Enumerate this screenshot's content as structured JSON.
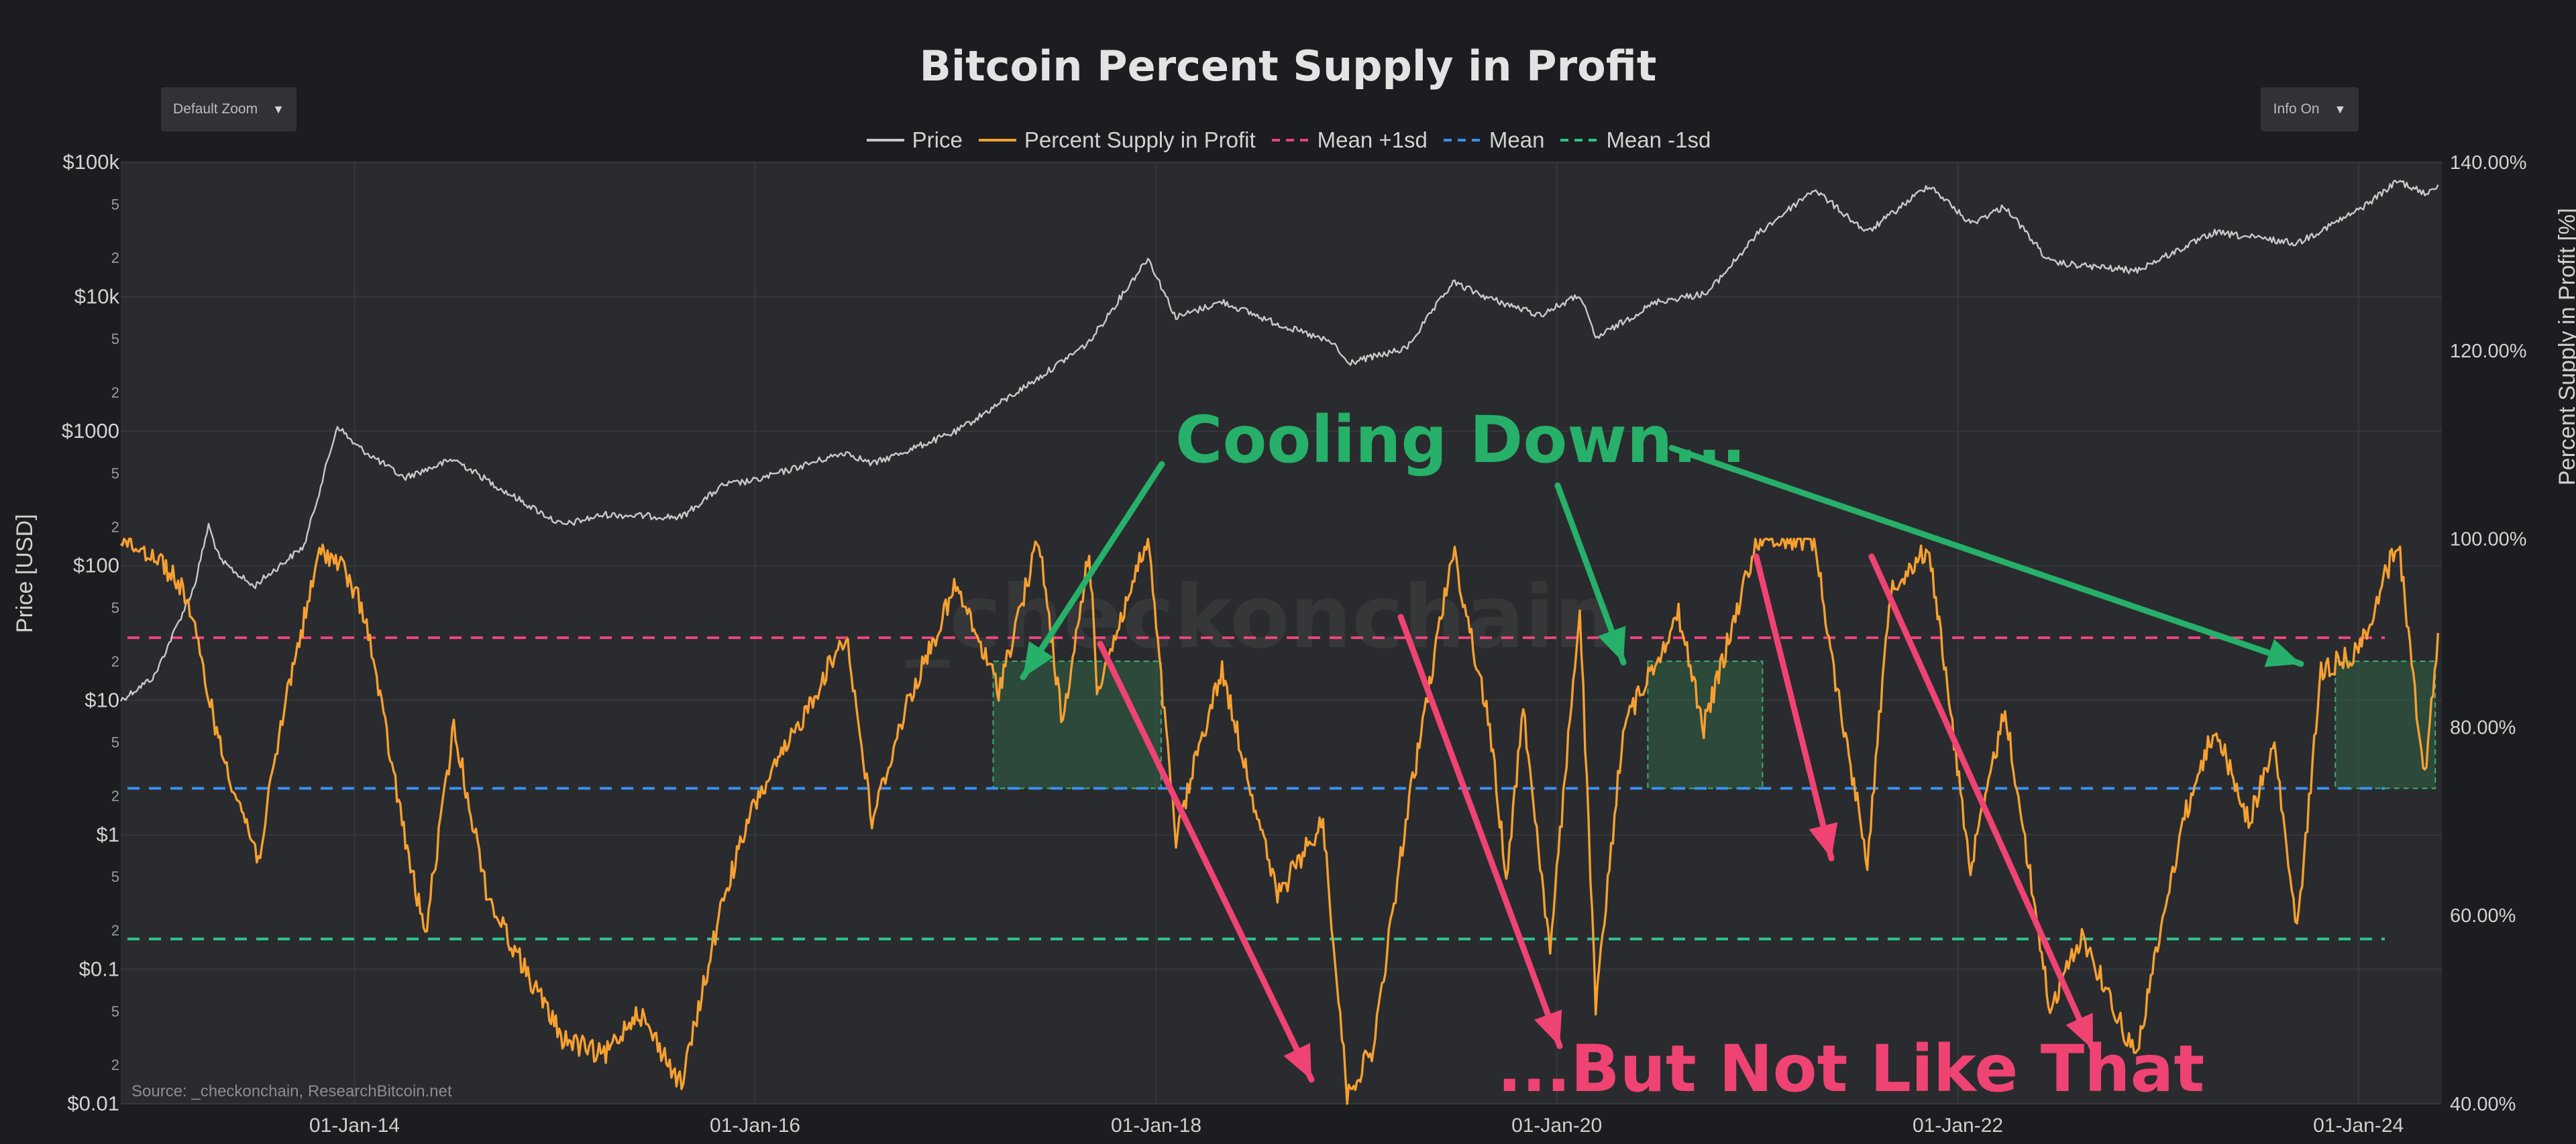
{
  "chart_title": "Bitcoin  Percent Supply in Profit",
  "zoom_dropdown": {
    "value": "Default Zoom",
    "icon": "caret-down-icon"
  },
  "info_dropdown": {
    "value": "Info On",
    "icon": "caret-down-icon"
  },
  "legend": [
    {
      "label": "Price",
      "color": "#c9c9c9",
      "style": "solid"
    },
    {
      "label": "Percent Supply in Profit",
      "color": "#f7a030",
      "style": "solid"
    },
    {
      "label": "Mean +1sd",
      "color": "#e8457a",
      "style": "dashed"
    },
    {
      "label": "Mean",
      "color": "#3b8ff0",
      "style": "dashed"
    },
    {
      "label": "Mean -1sd",
      "color": "#2fc48c",
      "style": "dashed"
    }
  ],
  "source": "Source: _checkonchain, ResearchBitcoin.net",
  "watermark": "_checkonchain",
  "annotations": {
    "cooling": "Cooling Down...",
    "not_like": "...But Not Like That"
  },
  "chart_data": {
    "type": "line",
    "x_range": [
      "2012-11-01",
      "2024-06-01"
    ],
    "x_ticks": [
      {
        "date": "2014-01-01",
        "label": "01-Jan-14"
      },
      {
        "date": "2016-01-01",
        "label": "01-Jan-16"
      },
      {
        "date": "2018-01-01",
        "label": "01-Jan-18"
      },
      {
        "date": "2020-01-01",
        "label": "01-Jan-20"
      },
      {
        "date": "2022-01-01",
        "label": "01-Jan-22"
      },
      {
        "date": "2024-01-01",
        "label": "01-Jan-24"
      }
    ],
    "y_left": {
      "label": "Price [USD]",
      "scale": "log",
      "range": [
        0.01,
        100000
      ],
      "ticks": [
        {
          "v": 100000,
          "t": "$100k",
          "major": true
        },
        {
          "v": 50000,
          "t": "5"
        },
        {
          "v": 20000,
          "t": "2"
        },
        {
          "v": 10000,
          "t": "$10k",
          "major": true
        },
        {
          "v": 5000,
          "t": "5"
        },
        {
          "v": 2000,
          "t": "2"
        },
        {
          "v": 1000,
          "t": "$1000",
          "major": true
        },
        {
          "v": 500,
          "t": "5"
        },
        {
          "v": 200,
          "t": "2"
        },
        {
          "v": 100,
          "t": "$100",
          "major": true
        },
        {
          "v": 50,
          "t": "5"
        },
        {
          "v": 20,
          "t": "2"
        },
        {
          "v": 10,
          "t": "$10",
          "major": true
        },
        {
          "v": 5,
          "t": "5"
        },
        {
          "v": 2,
          "t": "2"
        },
        {
          "v": 1,
          "t": "$1",
          "major": true
        },
        {
          "v": 0.5,
          "t": "5"
        },
        {
          "v": 0.2,
          "t": "2"
        },
        {
          "v": 0.1,
          "t": "$0.1",
          "major": true
        },
        {
          "v": 0.05,
          "t": "5"
        },
        {
          "v": 0.02,
          "t": "2"
        },
        {
          "v": 0.01,
          "t": "$0.01",
          "major": true
        }
      ]
    },
    "y_right": {
      "label": "Percent Supply in Profit [%]",
      "range": [
        40,
        140
      ],
      "ticks": [
        {
          "v": 140,
          "t": "140.00%"
        },
        {
          "v": 120,
          "t": "120.00%"
        },
        {
          "v": 100,
          "t": "100.00%"
        },
        {
          "v": 80,
          "t": "80.00%"
        },
        {
          "v": 60,
          "t": "60.00%"
        },
        {
          "v": 40,
          "t": "40.00%"
        }
      ]
    },
    "bands": {
      "mean_plus_1sd": 89.5,
      "mean": 73.5,
      "mean_minus_1sd": 57.5
    },
    "series": [
      {
        "name": "Price",
        "axis": "left",
        "color": "#c9c9c9",
        "points": [
          [
            "2012-11-01",
            10
          ],
          [
            "2013-01-01",
            15
          ],
          [
            "2013-03-15",
            70
          ],
          [
            "2013-04-10",
            200
          ],
          [
            "2013-05-01",
            110
          ],
          [
            "2013-07-01",
            70
          ],
          [
            "2013-10-01",
            140
          ],
          [
            "2013-12-01",
            1100
          ],
          [
            "2014-01-01",
            800
          ],
          [
            "2014-04-01",
            450
          ],
          [
            "2014-07-01",
            620
          ],
          [
            "2014-10-01",
            360
          ],
          [
            "2015-01-15",
            200
          ],
          [
            "2015-04-01",
            240
          ],
          [
            "2015-08-20",
            230
          ],
          [
            "2015-11-05",
            400
          ],
          [
            "2016-01-01",
            430
          ],
          [
            "2016-06-15",
            700
          ],
          [
            "2016-08-01",
            570
          ],
          [
            "2017-01-01",
            990
          ],
          [
            "2017-06-01",
            2500
          ],
          [
            "2017-09-01",
            4600
          ],
          [
            "2017-12-17",
            19500
          ],
          [
            "2018-02-06",
            7000
          ],
          [
            "2018-05-01",
            9200
          ],
          [
            "2018-08-01",
            6500
          ],
          [
            "2018-11-20",
            4500
          ],
          [
            "2018-12-15",
            3200
          ],
          [
            "2019-04-01",
            4100
          ],
          [
            "2019-06-26",
            12800
          ],
          [
            "2019-09-01",
            9700
          ],
          [
            "2019-12-01",
            7300
          ],
          [
            "2020-02-12",
            10300
          ],
          [
            "2020-03-12",
            4900
          ],
          [
            "2020-07-01",
            9200
          ],
          [
            "2020-10-01",
            10600
          ],
          [
            "2020-12-31",
            29000
          ],
          [
            "2021-04-14",
            63000
          ],
          [
            "2021-07-20",
            30000
          ],
          [
            "2021-11-10",
            68000
          ],
          [
            "2022-01-24",
            35000
          ],
          [
            "2022-03-28",
            47000
          ],
          [
            "2022-06-18",
            18000
          ],
          [
            "2022-11-21",
            15600
          ],
          [
            "2023-04-14",
            30000
          ],
          [
            "2023-09-11",
            25000
          ],
          [
            "2024-01-01",
            44000
          ],
          [
            "2024-03-14",
            73000
          ],
          [
            "2024-05-01",
            58000
          ],
          [
            "2024-05-25",
            68000
          ]
        ]
      },
      {
        "name": "Percent Supply in Profit",
        "axis": "right",
        "color": "#f7a030",
        "points": [
          [
            "2012-11-01",
            100
          ],
          [
            "2013-01-10",
            98
          ],
          [
            "2013-03-01",
            94
          ],
          [
            "2013-05-01",
            78
          ],
          [
            "2013-07-10",
            66
          ],
          [
            "2013-09-01",
            84
          ],
          [
            "2013-11-01",
            99
          ],
          [
            "2013-12-10",
            97
          ],
          [
            "2014-01-20",
            92
          ],
          [
            "2014-04-10",
            66
          ],
          [
            "2014-05-10",
            58
          ],
          [
            "2014-07-01",
            80
          ],
          [
            "2014-09-01",
            62
          ],
          [
            "2014-11-01",
            55
          ],
          [
            "2015-01-15",
            47
          ],
          [
            "2015-04-01",
            45
          ],
          [
            "2015-06-01",
            50
          ],
          [
            "2015-08-20",
            42
          ],
          [
            "2015-11-05",
            62
          ],
          [
            "2016-01-01",
            72
          ],
          [
            "2016-03-01",
            78
          ],
          [
            "2016-06-15",
            90
          ],
          [
            "2016-08-01",
            70
          ],
          [
            "2016-10-01",
            82
          ],
          [
            "2017-01-01",
            95
          ],
          [
            "2017-03-20",
            84
          ],
          [
            "2017-06-01",
            100
          ],
          [
            "2017-07-15",
            80
          ],
          [
            "2017-09-01",
            99
          ],
          [
            "2017-09-15",
            84
          ],
          [
            "2017-12-17",
            100
          ],
          [
            "2018-02-06",
            68
          ],
          [
            "2018-03-20",
            78
          ],
          [
            "2018-05-01",
            86
          ],
          [
            "2018-08-10",
            62
          ],
          [
            "2018-11-01",
            70
          ],
          [
            "2018-12-15",
            41
          ],
          [
            "2019-02-01",
            46
          ],
          [
            "2019-04-01",
            70
          ],
          [
            "2019-06-26",
            99
          ],
          [
            "2019-09-01",
            80
          ],
          [
            "2019-10-01",
            64
          ],
          [
            "2019-11-01",
            82
          ],
          [
            "2019-12-20",
            56
          ],
          [
            "2020-02-12",
            93
          ],
          [
            "2020-03-12",
            50
          ],
          [
            "2020-05-01",
            80
          ],
          [
            "2020-08-10",
            92
          ],
          [
            "2020-09-25",
            80
          ],
          [
            "2020-12-31",
            100
          ],
          [
            "2021-04-14",
            100
          ],
          [
            "2021-05-20",
            86
          ],
          [
            "2021-07-20",
            66
          ],
          [
            "2021-09-01",
            95
          ],
          [
            "2021-11-10",
            99
          ],
          [
            "2022-01-24",
            65
          ],
          [
            "2022-03-28",
            82
          ],
          [
            "2022-06-18",
            50
          ],
          [
            "2022-08-15",
            58
          ],
          [
            "2022-11-21",
            45
          ],
          [
            "2023-02-15",
            70
          ],
          [
            "2023-04-14",
            80
          ],
          [
            "2023-06-15",
            70
          ],
          [
            "2023-08-01",
            78
          ],
          [
            "2023-09-11",
            58
          ],
          [
            "2023-10-25",
            86
          ],
          [
            "2024-01-01",
            88
          ],
          [
            "2024-03-14",
            100
          ],
          [
            "2024-04-10",
            85
          ],
          [
            "2024-05-01",
            75
          ],
          [
            "2024-05-25",
            90
          ]
        ]
      }
    ],
    "highlight_zones": [
      {
        "from": "2017-03-10",
        "to": "2018-01-10",
        "y_min": 73.5,
        "y_max": 87
      },
      {
        "from": "2020-06-15",
        "to": "2021-01-10",
        "y_min": 73.5,
        "y_max": 87
      },
      {
        "from": "2023-11-20",
        "to": "2024-05-20",
        "y_min": 73.5,
        "y_max": 87
      }
    ]
  }
}
